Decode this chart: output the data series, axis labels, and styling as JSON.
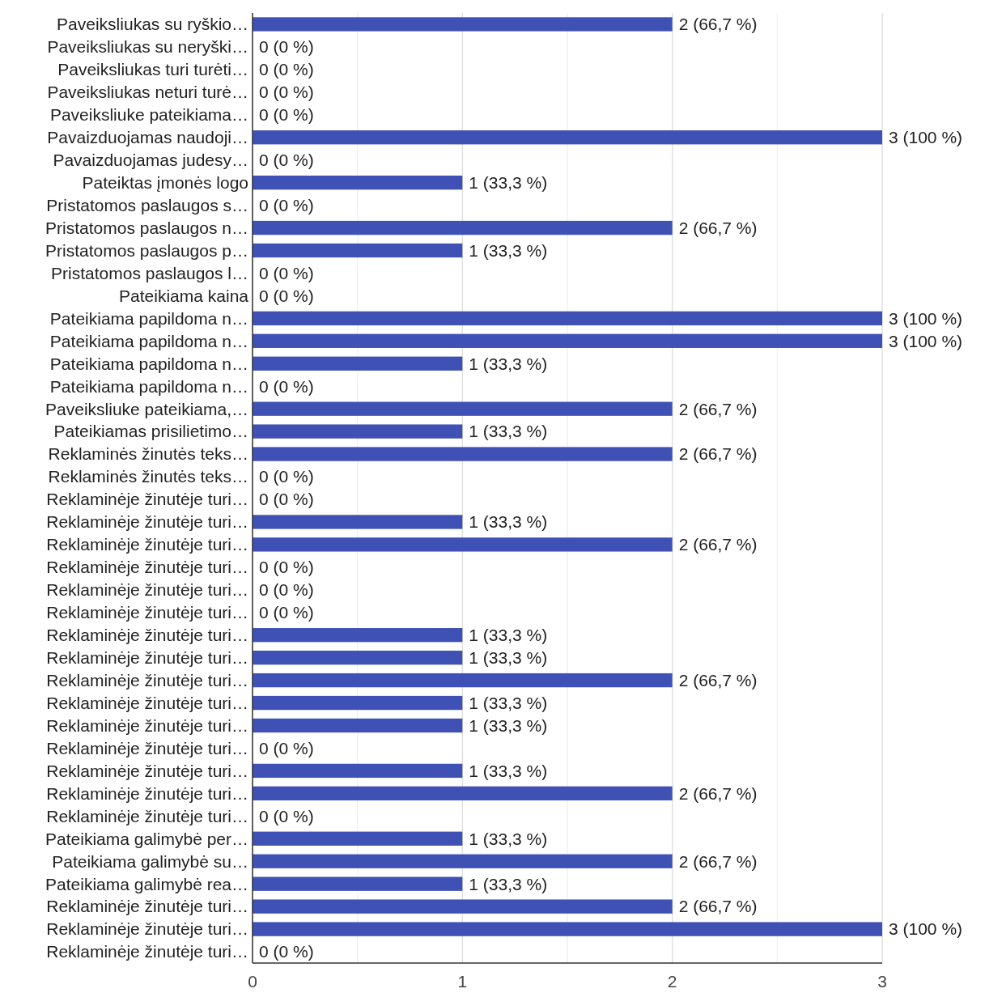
{
  "chart_data": {
    "type": "bar",
    "orientation": "horizontal",
    "categories": [
      "Paveiksliukas su ryškio…",
      "Paveiksliukas su neryški…",
      "Paveiksliukas turi turėti…",
      "Paveiksliukas neturi turė…",
      "Paveiksliuke pateikiama…",
      "Pavaizduojamas naudoji…",
      "Pavaizduojamas judesy…",
      "Pateiktas įmonės logo",
      "Pristatomos paslaugos s…",
      "Pristatomos paslaugos n…",
      "Pristatomos paslaugos p…",
      "Pristatomos paslaugos l…",
      "Pateikiama kaina",
      "Pateikiama papildoma n…",
      "Pateikiama papildoma n…",
      "Pateikiama papildoma n…",
      "Pateikiama papildoma n…",
      "Paveiksliuke pateikiama,…",
      "Pateikiamas prisilietimo…",
      "Reklaminės žinutės teks…",
      "Reklaminės žinutės teks…",
      "Reklaminėje žinutėje turi…",
      "Reklaminėje žinutėje turi…",
      "Reklaminėje žinutėje turi…",
      "Reklaminėje žinutėje turi…",
      "Reklaminėje žinutėje turi…",
      "Reklaminėje žinutėje turi…",
      "Reklaminėje žinutėje turi…",
      "Reklaminėje žinutėje turi…",
      "Reklaminėje žinutėje turi…",
      "Reklaminėje žinutėje turi…",
      "Reklaminėje žinutėje turi…",
      "Reklaminėje žinutėje turi…",
      "Reklaminėje žinutėje turi…",
      "Reklaminėje žinutėje turi…",
      "Reklaminėje žinutėje turi…",
      "Pateikiama galimybė per…",
      "Pateikiama galimybė su…",
      "Pateikiama galimybė rea…",
      "Reklaminėje žinutėje turi…",
      "Reklaminėje žinutėje turi…",
      "Reklaminėje žinutėje turi…"
    ],
    "values": [
      2,
      0,
      0,
      0,
      0,
      3,
      0,
      1,
      0,
      2,
      1,
      0,
      0,
      3,
      3,
      1,
      0,
      2,
      1,
      2,
      0,
      0,
      1,
      2,
      0,
      0,
      0,
      1,
      1,
      2,
      1,
      1,
      0,
      1,
      2,
      0,
      1,
      2,
      1,
      2,
      3,
      0
    ],
    "value_labels": [
      "2 (66,7 %)",
      "0 (0 %)",
      "0 (0 %)",
      "0 (0 %)",
      "0 (0 %)",
      "3 (100 %)",
      "0 (0 %)",
      "1 (33,3 %)",
      "0 (0 %)",
      "2 (66,7 %)",
      "1 (33,3 %)",
      "0 (0 %)",
      "0 (0 %)",
      "3 (100 %)",
      "3 (100 %)",
      "1 (33,3 %)",
      "0 (0 %)",
      "2 (66,7 %)",
      "1 (33,3 %)",
      "2 (66,7 %)",
      "0 (0 %)",
      "0 (0 %)",
      "1 (33,3 %)",
      "2 (66,7 %)",
      "0 (0 %)",
      "0 (0 %)",
      "0 (0 %)",
      "1 (33,3 %)",
      "1 (33,3 %)",
      "2 (66,7 %)",
      "1 (33,3 %)",
      "1 (33,3 %)",
      "0 (0 %)",
      "1 (33,3 %)",
      "2 (66,7 %)",
      "0 (0 %)",
      "1 (33,3 %)",
      "2 (66,7 %)",
      "1 (33,3 %)",
      "2 (66,7 %)",
      "3 (100 %)",
      "0 (0 %)"
    ],
    "color": "#3f51b5",
    "xlim": [
      0,
      3
    ],
    "xticks": [
      0,
      {
        "value": 0.5,
        "label": null
      },
      1,
      {
        "value": 1.5,
        "label": null
      },
      2,
      {
        "value": 2.5,
        "label": null
      },
      3
    ],
    "grid": "x"
  }
}
